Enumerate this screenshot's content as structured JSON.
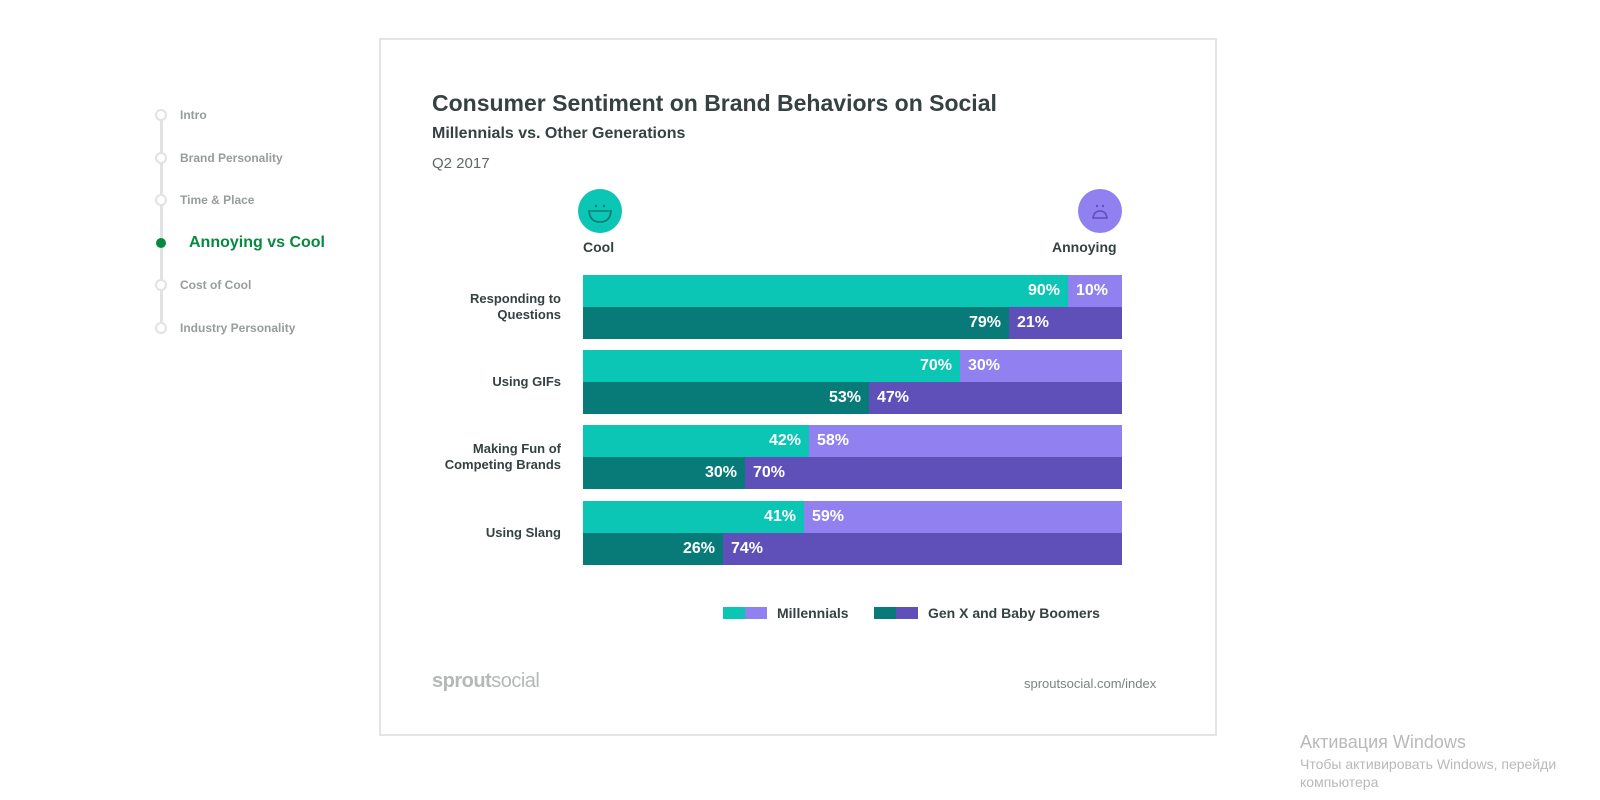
{
  "sidebar": {
    "items": [
      {
        "label": "Intro",
        "active": false
      },
      {
        "label": "Brand Personality",
        "active": false
      },
      {
        "label": "Time & Place",
        "active": false
      },
      {
        "label": "Annoying vs Cool",
        "active": true
      },
      {
        "label": "Cost of Cool",
        "active": false
      },
      {
        "label": "Industry Personality",
        "active": false
      }
    ]
  },
  "chart_data": {
    "type": "bar",
    "orientation": "horizontal-stacked-100",
    "title": "Consumer Sentiment on Brand Behaviors on Social",
    "subtitle": "Millennials vs. Other Generations",
    "period": "Q2 2017",
    "left_label": "Cool",
    "right_label": "Annoying",
    "left_icon": "smiley-face-icon",
    "right_icon": "frowning-face-icon",
    "categories": [
      "Responding to Questions",
      "Using GIFs",
      "Making Fun of Competing Brands",
      "Using Slang"
    ],
    "category_lines": [
      [
        "Responding to",
        "Questions"
      ],
      [
        "Using GIFs"
      ],
      [
        "Making Fun of",
        "Competing Brands"
      ],
      [
        "Using Slang"
      ]
    ],
    "series": [
      {
        "name": "Millennials",
        "cool": [
          90,
          70,
          42,
          41
        ],
        "annoying": [
          10,
          30,
          58,
          59
        ],
        "colors": [
          "#0bc5b5",
          "#9181f0"
        ]
      },
      {
        "name": "Gen X and Baby Boomers",
        "cool": [
          79,
          53,
          30,
          26
        ],
        "annoying": [
          21,
          47,
          70,
          74
        ],
        "colors": [
          "#087b78",
          "#5f4fb8"
        ]
      }
    ],
    "value_suffix": "%",
    "legend_position": "bottom-right",
    "grid": false
  },
  "footer": {
    "logo_bold": "sprout",
    "logo_light": "social",
    "url": "sproutsocial.com/index"
  },
  "watermark": {
    "line1": "Активация Windows",
    "line2": "Чтобы активировать Windows, перейди",
    "line3": "компьютера"
  }
}
